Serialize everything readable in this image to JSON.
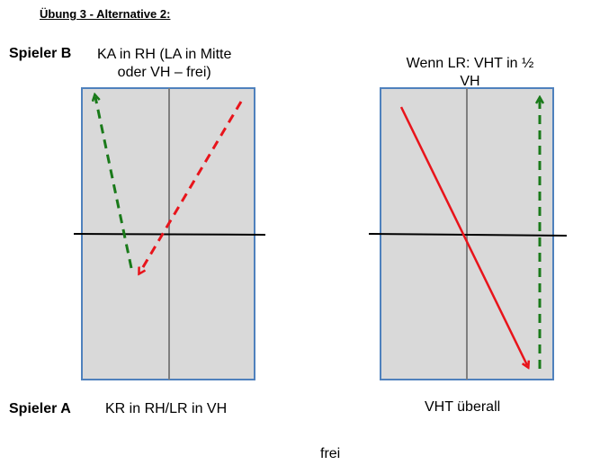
{
  "title": "Übung 3 - Alternative 2:",
  "player_b": {
    "label": "Spieler B",
    "text_line1": "KA in RH (LA in Mitte",
    "text_line2": "oder VH – frei)"
  },
  "right_note": {
    "line1": "Wenn LR: VHT in ½",
    "line2": "VH"
  },
  "player_a": {
    "label": "Spieler A",
    "text": "KR in RH/LR in VH"
  },
  "right_bottom": "VHT überall",
  "footer": "frei",
  "colors": {
    "court_fill": "#d9d9d9",
    "court_border": "#4f81bd",
    "center_line": "#7f7f7f",
    "net": "#000000",
    "green_arrow": "#1a7a1a",
    "red_arrow": "#e8141b"
  }
}
